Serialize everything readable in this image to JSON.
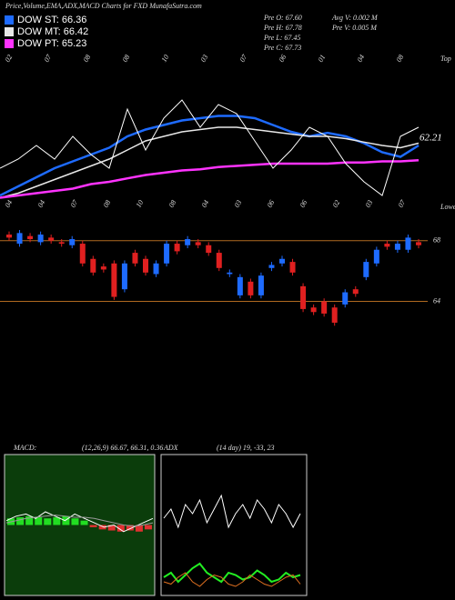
{
  "header": {
    "title": "Price,Volume,EMA,ADX,MACD Charts for FXD MunafaSutra.com",
    "stats": [
      "Pre  O: 67.60",
      "Avg V: 0.002  M",
      "Pre  H: 67.78",
      "Pre  V: 0.005 M",
      "Pre  L: 67.45",
      "Pre  C: 67.73"
    ]
  },
  "chart_data": [
    {
      "type": "line",
      "ylim": [
        56,
        68
      ],
      "last_label": "62.21",
      "side_labels": [
        "Top",
        "Lower"
      ],
      "date_labels_top": [
        "02",
        "07",
        "08",
        "08",
        "10",
        "03",
        "07",
        "06",
        "01",
        "04",
        "08"
      ],
      "date_labels_bottom": [
        "04",
        "04",
        "07",
        "08",
        "10",
        "08",
        "04",
        "03",
        "06",
        "06",
        "02",
        "03",
        "07"
      ],
      "series": [
        {
          "name": "DOW ST: 66.36",
          "color": "#1e6bff",
          "values": [
            57.2,
            58.0,
            58.8,
            59.6,
            60.2,
            60.8,
            61.4,
            62.4,
            63.0,
            63.4,
            63.8,
            64.0,
            64.2,
            64.2,
            64.0,
            63.4,
            62.8,
            62.4,
            62.7,
            62.4,
            61.8,
            61.0,
            60.6,
            61.6
          ]
        },
        {
          "name": "DOW MT: 66.42",
          "color": "#e8e8e8",
          "values": [
            57.0,
            57.4,
            58.0,
            58.6,
            59.2,
            59.8,
            60.4,
            61.2,
            62.0,
            62.4,
            62.8,
            63.0,
            63.2,
            63.2,
            63.0,
            62.8,
            62.6,
            62.4,
            62.4,
            62.2,
            61.9,
            61.6,
            61.4,
            61.8
          ]
        },
        {
          "name": "DOW PT: 65.23",
          "color": "#ff33ff",
          "values": [
            57.0,
            57.2,
            57.4,
            57.6,
            57.8,
            58.2,
            58.4,
            58.7,
            59.0,
            59.2,
            59.4,
            59.5,
            59.7,
            59.8,
            59.9,
            60.0,
            60.0,
            60.0,
            60.0,
            60.1,
            60.1,
            60.2,
            60.2,
            60.3
          ]
        },
        {
          "color": "#ffffff",
          "values": [
            59.6,
            60.4,
            61.6,
            60.4,
            62.4,
            60.8,
            59.6,
            64.8,
            61.2,
            64.0,
            65.6,
            63.2,
            65.2,
            64.4,
            62.0,
            59.6,
            61.2,
            63.2,
            62.4,
            60.0,
            58.4,
            57.2,
            62.4,
            63.2
          ]
        }
      ]
    },
    {
      "type": "candlestick",
      "ylim": [
        61.7,
        69
      ],
      "yticks": [
        64,
        68
      ],
      "up_color": "#1e6bff",
      "down_color": "#e02020",
      "open": [
        68.4,
        67.8,
        68.3,
        67.9,
        68.2,
        67.9,
        67.7,
        67.8,
        66.8,
        66.3,
        66.5,
        64.8,
        67.2,
        66.8,
        65.8,
        66.5,
        67.8,
        67.7,
        67.9,
        67.7,
        67.2,
        65.8,
        64.4,
        65.3,
        64.4,
        66.2,
        66.5,
        66.6,
        65.0,
        63.6,
        64.0,
        63.6,
        63.8,
        64.8,
        65.6,
        66.5,
        67.8,
        67.4,
        67.4,
        67.9
      ],
      "high": [
        68.6,
        68.7,
        68.5,
        68.6,
        68.4,
        68.1,
        68.3,
        68.0,
        67.0,
        66.5,
        66.7,
        66.7,
        67.4,
        67.0,
        66.7,
        68.0,
        68.0,
        68.3,
        68.1,
        67.9,
        67.4,
        66.1,
        65.8,
        65.5,
        65.9,
        66.6,
        67.0,
        66.8,
        65.2,
        63.8,
        64.2,
        63.8,
        64.8,
        65.0,
        66.8,
        67.6,
        68.0,
        68.0,
        68.4,
        68.1
      ],
      "low": [
        68.0,
        67.6,
        67.9,
        67.7,
        67.8,
        67.6,
        67.5,
        66.3,
        65.7,
        65.9,
        64.1,
        64.6,
        66.3,
        65.7,
        65.6,
        66.3,
        67.1,
        67.5,
        67.5,
        67.0,
        66.0,
        65.6,
        64.2,
        64.2,
        64.2,
        66.0,
        66.3,
        65.7,
        63.3,
        63.1,
        63.0,
        62.4,
        63.6,
        64.3,
        65.4,
        66.3,
        67.4,
        67.2,
        67.2,
        67.5
      ],
      "close": [
        68.2,
        68.5,
        68.1,
        68.4,
        68.0,
        67.8,
        68.1,
        66.5,
        65.9,
        66.1,
        64.3,
        66.5,
        66.5,
        65.9,
        66.5,
        67.8,
        67.3,
        68.1,
        67.7,
        67.2,
        66.2,
        65.9,
        65.6,
        64.4,
        65.7,
        66.4,
        66.8,
        65.9,
        63.5,
        63.3,
        63.2,
        62.6,
        64.6,
        64.5,
        66.6,
        67.4,
        67.6,
        67.8,
        68.2,
        67.7
      ]
    },
    {
      "type": "macd",
      "title": "MACD:",
      "subtitle": "(12,26,9) 66.67, 66.31, 0.36",
      "ylim": [
        -3,
        3
      ],
      "series": [
        {
          "color": "#ffffff",
          "values": [
            0.2,
            0.4,
            0.5,
            0.3,
            0.6,
            0.4,
            0.2,
            0.5,
            0.3,
            0.1,
            -0.1,
            0.0,
            -0.3,
            -0.1,
            0.1,
            0.3
          ]
        },
        {
          "color": "#9a9a9a",
          "values": [
            0.1,
            0.2,
            0.3,
            0.35,
            0.4,
            0.45,
            0.4,
            0.35,
            0.35,
            0.3,
            0.2,
            0.1,
            0.0,
            -0.05,
            0.0,
            0.1
          ]
        }
      ],
      "histogram": [
        0.3,
        0.35,
        0.4,
        0.35,
        0.3,
        0.35,
        0.4,
        0.3,
        0.2,
        -0.1,
        -0.2,
        -0.25,
        -0.3,
        -0.25,
        -0.3,
        -0.2
      ],
      "up_color": "#22dd22",
      "down_color": "#e03030"
    },
    {
      "type": "line",
      "title": "ADX",
      "subtitle": "(14 day) 19, -33, 23",
      "ylim": [
        0,
        60
      ],
      "series": [
        {
          "color": "#ffffff",
          "values": [
            34,
            38,
            30,
            40,
            36,
            42,
            32,
            38,
            44,
            30,
            36,
            40,
            34,
            42,
            38,
            32,
            40,
            36,
            30,
            36
          ]
        },
        {
          "color": "#22ee22",
          "values": [
            8,
            10,
            6,
            9,
            12,
            14,
            10,
            8,
            6,
            10,
            9,
            7,
            8,
            11,
            9,
            6,
            7,
            10,
            8,
            9
          ]
        },
        {
          "color": "#e07020",
          "values": [
            6,
            5,
            8,
            10,
            6,
            4,
            7,
            9,
            8,
            5,
            4,
            6,
            9,
            7,
            5,
            4,
            6,
            8,
            9,
            5
          ]
        }
      ]
    }
  ]
}
